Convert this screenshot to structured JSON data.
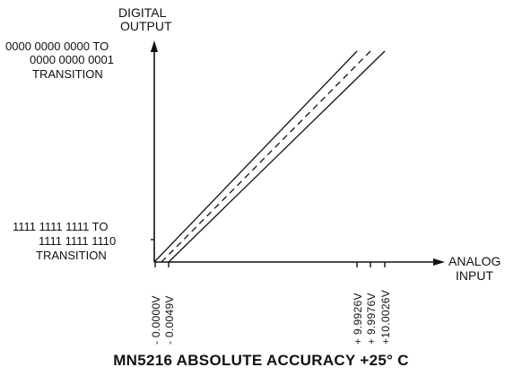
{
  "diagram": {
    "y_axis_title_line1": "DIGITAL",
    "y_axis_title_line2": "OUTPUT",
    "x_axis_title_line1": "ANALOG",
    "x_axis_title_line2": "INPUT",
    "top_code_line1": "0000 0000 0000 TO",
    "top_code_line2": "0000 0000 0001",
    "top_code_line3": "TRANSITION",
    "bottom_code_line1": "1111 1111 1111 TO",
    "bottom_code_line2": "1111 1111 1110",
    "bottom_code_line3": "TRANSITION",
    "x_ticks": [
      "- 0.0000V",
      "- 0.0049V",
      "+ 9.9926V",
      "+ 9.9976V",
      "+10.0026V"
    ],
    "caption": "MN5216 ABSOLUTE ACCURACY +25° C"
  },
  "line_color": "#111111"
}
